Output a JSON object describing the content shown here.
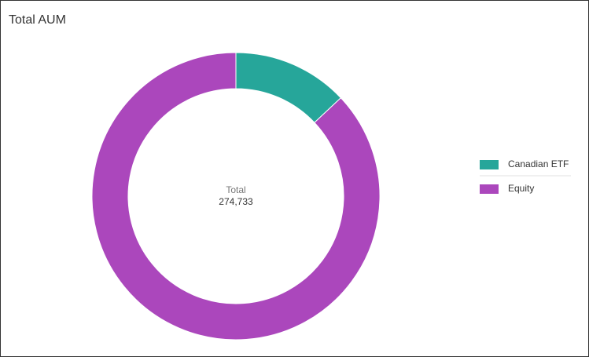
{
  "chart_data": {
    "type": "donut",
    "title": "Total AUM",
    "categories": [
      "Canadian ETF",
      "Equity"
    ],
    "values": [
      35715,
      239018
    ],
    "colors": [
      "#26a69a",
      "#ab47bc"
    ],
    "center_label": "Total",
    "total": {
      "value": 274733,
      "label": "274,733"
    },
    "legend": "right"
  }
}
